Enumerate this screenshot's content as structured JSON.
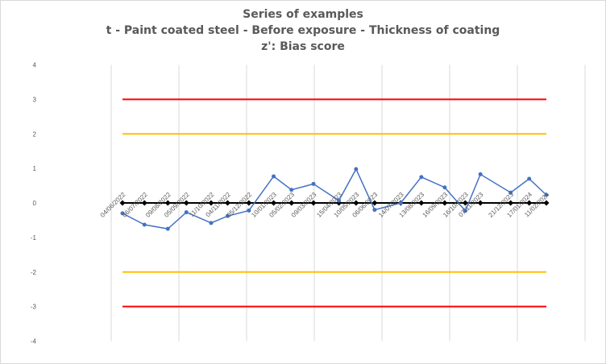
{
  "chart_data": {
    "type": "line",
    "title": [
      "Series of examples",
      "t - Paint coated steel - Before exposure - Thickness of coating",
      "z': Bias score"
    ],
    "xlabel": "",
    "ylabel": "",
    "ylim": [
      -4,
      4
    ],
    "y_ticks": [
      "4",
      "3",
      "2",
      "1",
      "0",
      "-1",
      "-2",
      "-3",
      "-4"
    ],
    "grid": "vertical",
    "legend": "none",
    "colors": {
      "series": "#4472c4",
      "zero_line": "#000000",
      "action_limit": "#ff0000",
      "warning_limit": "#ffc000",
      "grid": "#d9d9d9"
    },
    "control_lines": [
      {
        "value": 3,
        "color": "#ff0000"
      },
      {
        "value": 2,
        "color": "#ffc000"
      },
      {
        "value": -2,
        "color": "#ffc000"
      },
      {
        "value": -3,
        "color": "#ff0000"
      }
    ],
    "x_labels": [
      "04/06/2022",
      "06/07/2022",
      "09/08/2022",
      "05/09/2022",
      "11/10/2022",
      "04/11/2022",
      "05/12/2022",
      "10/01/2023",
      "05/02/2023",
      "09/03/2023",
      "15/04/2023",
      "10/05/2023",
      "06/06/2023",
      "14/07/2023",
      "13/08/2023",
      "16/09/2023",
      "16/10/2023",
      "07/11/2023",
      "21/12/2023",
      "17/01/2024",
      "11/02/2024"
    ],
    "series": [
      {
        "x": [
          "04/06/2022",
          "06/07/2022",
          "09/08/2022",
          "05/09/2022",
          "11/10/2022",
          "04/11/2022",
          "05/12/2022",
          "10/01/2023",
          "05/02/2023",
          "09/03/2023",
          "15/04/2023",
          "10/05/2023",
          "06/06/2023",
          "14/07/2023",
          "13/08/2023",
          "16/09/2023",
          "16/10/2023",
          "07/11/2023",
          "21/12/2023",
          "17/01/2024",
          "11/02/2024"
        ],
        "values": [
          -0.3,
          -0.63,
          -0.75,
          -0.27,
          -0.58,
          -0.38,
          -0.22,
          0.77,
          0.38,
          0.55,
          0.07,
          0.98,
          -0.2,
          0.0,
          0.75,
          0.45,
          -0.23,
          0.83,
          0.3,
          0.7,
          0.23
        ]
      }
    ]
  }
}
